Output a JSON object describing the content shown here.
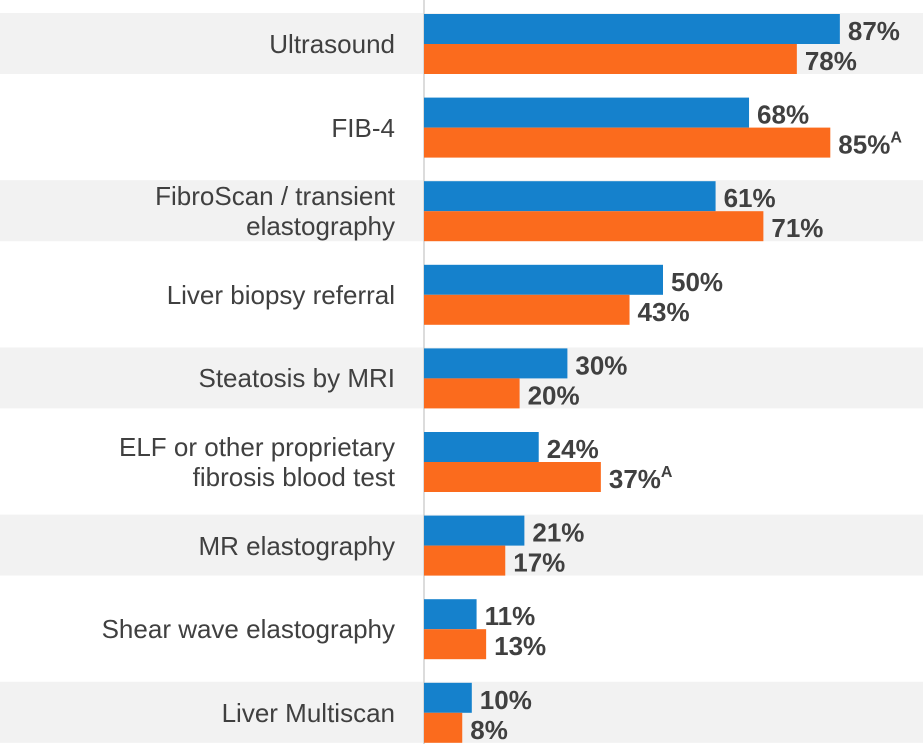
{
  "chart_data": {
    "type": "bar",
    "orientation": "horizontal",
    "categories": [
      "Ultrasound",
      "FIB-4",
      "FibroScan / transient\nelastography",
      "Liver biopsy referral",
      "Steatosis by MRI",
      "ELF or other proprietary\nfibrosis blood test",
      "MR elastography",
      "Shear wave elastography",
      "Liver Multiscan"
    ],
    "series": [
      {
        "color": "#1581cc",
        "values": [
          87,
          68,
          61,
          50,
          30,
          24,
          21,
          11,
          10
        ],
        "value_labels": [
          "87%",
          "68%",
          "61%",
          "50%",
          "30%",
          "24%",
          "21%",
          "11%",
          "10%"
        ]
      },
      {
        "color": "#fb6b1d",
        "values": [
          78,
          85,
          71,
          43,
          20,
          37,
          17,
          13,
          8
        ],
        "value_labels": [
          "78%",
          "85%",
          "71%",
          "43%",
          "20%",
          "37%",
          "17%",
          "13%",
          "8%"
        ],
        "superscripts": [
          null,
          "A",
          null,
          null,
          null,
          "A",
          null,
          null,
          null
        ]
      }
    ],
    "xlim": [
      0,
      100
    ]
  }
}
